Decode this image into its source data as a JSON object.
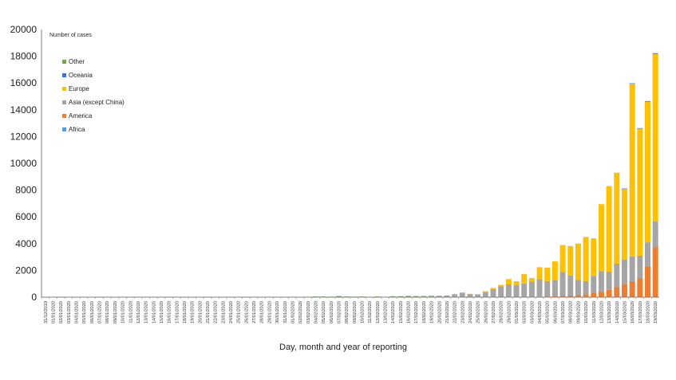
{
  "chart_data": {
    "type": "bar",
    "stacked": true,
    "ylabel": "Number of cases",
    "xlabel": "Day, month and year of reporting",
    "ylim": [
      0,
      20000
    ],
    "yticks": [
      "0",
      "2000",
      "4000",
      "6000",
      "8000",
      "10000",
      "12000",
      "14000",
      "16000",
      "18000",
      "20000"
    ],
    "grid": false,
    "legend_position": "top-left",
    "categories": [
      "31/12/2019",
      "01/01/2020",
      "02/01/2020",
      "03/01/2020",
      "04/01/2020",
      "05/01/2020",
      "06/01/2020",
      "07/01/2020",
      "08/01/2020",
      "09/01/2020",
      "10/01/2020",
      "11/01/2020",
      "12/01/2020",
      "13/01/2020",
      "14/01/2020",
      "15/01/2020",
      "16/01/2020",
      "17/01/2020",
      "18/01/2020",
      "19/01/2020",
      "20/01/2020",
      "21/01/2020",
      "22/01/2020",
      "23/01/2020",
      "24/01/2020",
      "25/01/2020",
      "26/01/2020",
      "27/01/2020",
      "28/01/2020",
      "29/01/2020",
      "30/01/2020",
      "31/01/2020",
      "01/02/2020",
      "02/02/2020",
      "03/02/2020",
      "04/02/2020",
      "05/02/2020",
      "06/02/2020",
      "07/02/2020",
      "08/02/2020",
      "09/02/2020",
      "10/02/2020",
      "11/02/2020",
      "12/02/2020",
      "13/02/2020",
      "14/02/2020",
      "15/02/2020",
      "16/02/2020",
      "17/02/2020",
      "18/02/2020",
      "19/02/2020",
      "20/02/2020",
      "21/02/2020",
      "22/02/2020",
      "23/02/2020",
      "24/02/2020",
      "25/02/2020",
      "26/02/2020",
      "27/02/2020",
      "28/02/2020",
      "29/02/2020",
      "01/03/2020",
      "02/03/2020",
      "03/03/2020",
      "04/03/2020",
      "05/03/2020",
      "06/03/2020",
      "07/03/2020",
      "08/03/2020",
      "09/03/2020",
      "10/03/2020",
      "11/03/2020",
      "12/03/2020",
      "13/03/2020",
      "14/03/2020",
      "15/03/2020",
      "16/03/2020",
      "17/03/2020",
      "18/03/2020",
      "19/03/2020"
    ],
    "series": [
      {
        "name": "Africa",
        "color": "#5b9bd5",
        "values": [
          0,
          0,
          0,
          0,
          0,
          0,
          0,
          0,
          0,
          0,
          0,
          0,
          0,
          0,
          0,
          0,
          0,
          0,
          0,
          0,
          0,
          0,
          0,
          0,
          0,
          0,
          0,
          0,
          0,
          0,
          0,
          0,
          0,
          0,
          0,
          0,
          0,
          0,
          0,
          0,
          0,
          0,
          0,
          0,
          0,
          0,
          0,
          0,
          0,
          0,
          0,
          0,
          0,
          0,
          0,
          0,
          0,
          0,
          0,
          0,
          0,
          0,
          0,
          0,
          0,
          0,
          0,
          0,
          0,
          0,
          0,
          0,
          0,
          0,
          0,
          0,
          0,
          0,
          0,
          20
        ]
      },
      {
        "name": "America",
        "color": "#ed7d31",
        "values": [
          0,
          0,
          0,
          0,
          0,
          0,
          0,
          0,
          0,
          0,
          0,
          0,
          0,
          0,
          0,
          0,
          0,
          0,
          0,
          0,
          0,
          0,
          0,
          0,
          0,
          0,
          0,
          0,
          0,
          0,
          0,
          0,
          0,
          0,
          0,
          0,
          0,
          0,
          0,
          0,
          0,
          0,
          0,
          0,
          0,
          0,
          0,
          0,
          0,
          0,
          0,
          0,
          0,
          0,
          0,
          0,
          0,
          0,
          0,
          0,
          0,
          10,
          20,
          30,
          40,
          50,
          70,
          90,
          120,
          150,
          200,
          300,
          400,
          550,
          750,
          1000,
          1200,
          1400,
          2300,
          3700
        ]
      },
      {
        "name": "Asia (except China)",
        "color": "#a5a5a5",
        "values": [
          0,
          0,
          0,
          0,
          0,
          0,
          0,
          0,
          0,
          0,
          0,
          0,
          0,
          0,
          0,
          0,
          0,
          0,
          0,
          0,
          0,
          0,
          0,
          0,
          0,
          0,
          0,
          0,
          10,
          10,
          20,
          20,
          20,
          20,
          20,
          20,
          20,
          20,
          20,
          20,
          20,
          20,
          30,
          30,
          30,
          30,
          30,
          30,
          30,
          40,
          40,
          60,
          80,
          220,
          330,
          230,
          200,
          380,
          600,
          800,
          950,
          880,
          1000,
          1150,
          1300,
          1150,
          1200,
          1800,
          1500,
          1150,
          1000,
          1300,
          1550,
          1350,
          1750,
          1800,
          1850,
          1700,
          1800,
          1950
        ]
      },
      {
        "name": "Europe",
        "color": "#ffc000",
        "values": [
          0,
          0,
          0,
          0,
          0,
          0,
          0,
          0,
          0,
          0,
          0,
          0,
          0,
          0,
          0,
          0,
          0,
          0,
          0,
          0,
          0,
          0,
          0,
          0,
          0,
          0,
          0,
          0,
          0,
          0,
          0,
          0,
          0,
          0,
          0,
          0,
          0,
          0,
          0,
          0,
          0,
          0,
          0,
          0,
          0,
          0,
          0,
          0,
          0,
          0,
          0,
          0,
          0,
          10,
          20,
          20,
          20,
          60,
          90,
          120,
          400,
          300,
          700,
          250,
          900,
          1000,
          1400,
          2000,
          2200,
          2700,
          3300,
          2800,
          5000,
          6400,
          6800,
          5300,
          12900,
          9500,
          10500,
          12500
        ]
      },
      {
        "name": "Oceania",
        "color": "#4472c4",
        "values": [
          0,
          0,
          0,
          0,
          0,
          0,
          0,
          0,
          0,
          0,
          0,
          0,
          0,
          0,
          0,
          0,
          0,
          0,
          0,
          0,
          0,
          0,
          0,
          0,
          0,
          0,
          0,
          0,
          0,
          0,
          10,
          10,
          10,
          10,
          0,
          10,
          10,
          0,
          0,
          0,
          0,
          0,
          0,
          0,
          0,
          0,
          0,
          0,
          0,
          0,
          0,
          0,
          0,
          0,
          0,
          0,
          0,
          0,
          0,
          0,
          0,
          0,
          0,
          0,
          0,
          0,
          0,
          0,
          0,
          0,
          0,
          0,
          0,
          0,
          0,
          20,
          30,
          30,
          50,
          60
        ]
      },
      {
        "name": "Other",
        "color": "#70ad47",
        "values": [
          0,
          0,
          0,
          0,
          0,
          0,
          0,
          0,
          0,
          0,
          0,
          0,
          0,
          0,
          0,
          0,
          0,
          0,
          0,
          0,
          0,
          0,
          0,
          0,
          0,
          0,
          0,
          0,
          0,
          0,
          0,
          0,
          0,
          0,
          0,
          20,
          20,
          20,
          60,
          30,
          20,
          30,
          0,
          20,
          0,
          40,
          40,
          60,
          50,
          50,
          60,
          40,
          40,
          0,
          0,
          0,
          0,
          0,
          0,
          0,
          0,
          0,
          0,
          0,
          0,
          0,
          0,
          0,
          0,
          0,
          0,
          0,
          0,
          0,
          0,
          0,
          0,
          0,
          0,
          0
        ]
      }
    ],
    "legend_order": [
      "Other",
      "Oceania",
      "Europe",
      "Asia (except China)",
      "America",
      "Africa"
    ]
  }
}
